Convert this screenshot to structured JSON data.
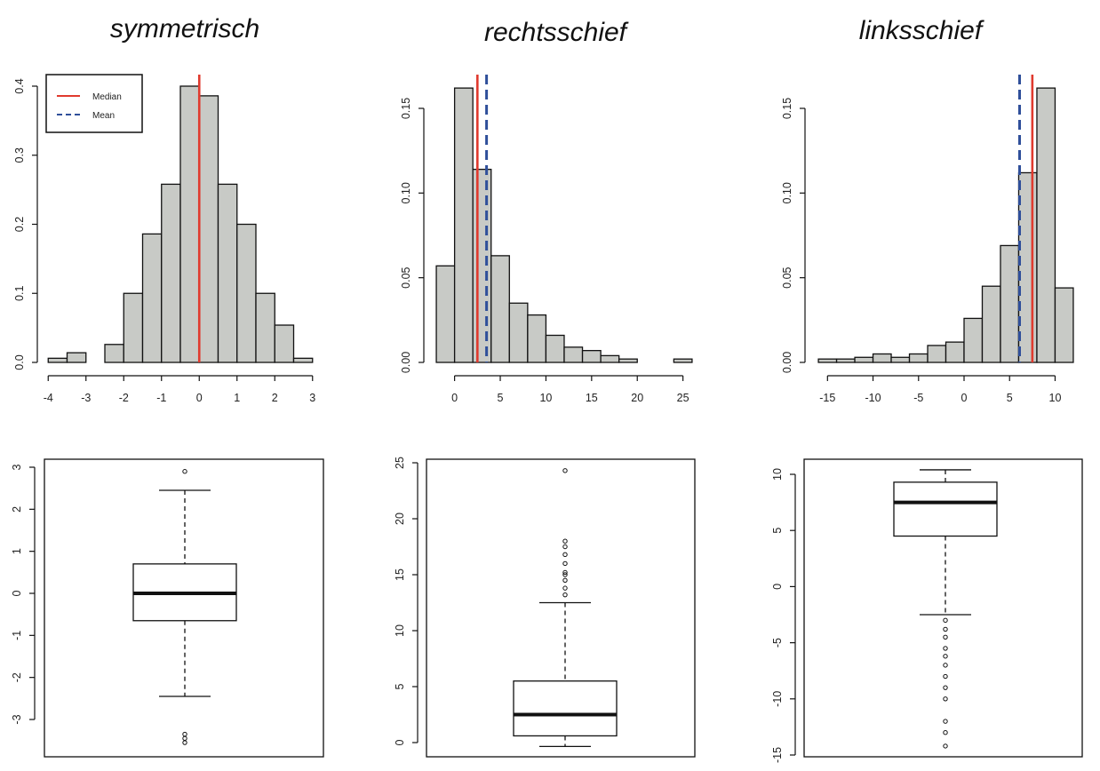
{
  "colors": {
    "bar_fill": "#c8cac6",
    "outline": "#111111",
    "median": "#e03a2e",
    "mean": "#2f4f9a"
  },
  "titles": [
    "symmetrisch",
    "rechtsschief",
    "linksschief"
  ],
  "legend": {
    "median_label": "Median",
    "mean_label": "Mean",
    "placement": "top-left"
  },
  "chart_data": [
    {
      "type": "bar",
      "title": "symmetrisch",
      "xlabel": "",
      "ylabel": "",
      "xlim": [
        -4.1,
        3.1
      ],
      "ylim": [
        0,
        0.4
      ],
      "x_ticks": [
        -4,
        -3,
        -2,
        -1,
        0,
        1,
        2,
        3
      ],
      "y_ticks": [
        0.0,
        0.1,
        0.2,
        0.3,
        0.4
      ],
      "y_tick_labels": [
        "0.0",
        "0.1",
        "0.2",
        "0.3",
        "0.4"
      ],
      "bin_edges": [
        -4,
        -3.5,
        -3,
        -2.5,
        -2,
        -1.5,
        -1,
        -0.5,
        0,
        0.5,
        1,
        1.5,
        2,
        2.5,
        3
      ],
      "density": [
        0.006,
        0.014,
        0.0,
        0.026,
        0.1,
        0.186,
        0.258,
        0.4,
        0.386,
        0.258,
        0.2,
        0.1,
        0.054,
        0.006
      ],
      "median": 0.0,
      "mean": null
    },
    {
      "type": "bar",
      "title": "rechtsschief",
      "xlabel": "",
      "ylabel": "",
      "xlim": [
        -2.2,
        26.3
      ],
      "ylim": [
        0,
        0.15
      ],
      "x_ticks": [
        0,
        5,
        10,
        15,
        20,
        25
      ],
      "y_ticks": [
        0.0,
        0.05,
        0.1,
        0.15
      ],
      "y_tick_labels": [
        "0.00",
        "0.05",
        "0.10",
        "0.15"
      ],
      "bin_edges": [
        -2,
        0,
        2,
        4,
        6,
        8,
        10,
        12,
        14,
        16,
        18,
        20,
        22,
        24,
        26
      ],
      "density": [
        0.057,
        0.162,
        0.114,
        0.063,
        0.035,
        0.028,
        0.016,
        0.009,
        0.007,
        0.004,
        0.002,
        0.0,
        0.0,
        0.002
      ],
      "median": 2.5,
      "mean": 3.5
    },
    {
      "type": "bar",
      "title": "linksschief",
      "xlabel": "",
      "ylabel": "",
      "xlim": [
        -16.3,
        12.2
      ],
      "ylim": [
        0,
        0.15
      ],
      "x_ticks": [
        -15,
        -10,
        -5,
        0,
        5,
        10
      ],
      "y_ticks": [
        0.0,
        0.05,
        0.1,
        0.15
      ],
      "y_tick_labels": [
        "0.00",
        "0.05",
        "0.10",
        "0.15"
      ],
      "bin_edges": [
        -16,
        -14,
        -12,
        -10,
        -8,
        -6,
        -4,
        -2,
        0,
        2,
        4,
        6,
        8,
        10,
        12
      ],
      "density": [
        0.002,
        0.002,
        0.003,
        0.005,
        0.003,
        0.005,
        0.01,
        0.012,
        0.026,
        0.045,
        0.069,
        0.112,
        0.162,
        0.044
      ],
      "median": 7.5,
      "mean": 6.1
    },
    {
      "type": "box",
      "title": "",
      "ylim": [
        -3.65,
        3.12
      ],
      "y_ticks": [
        -3,
        -2,
        -1,
        0,
        1,
        2,
        3
      ],
      "y_tick_labels": [
        "-3",
        "-2",
        "-1",
        "0",
        "1",
        "2",
        "3"
      ],
      "whisker_low": -2.45,
      "q1": -0.65,
      "median": 0.0,
      "q3": 0.7,
      "whisker_high": 2.45,
      "outliers": [
        2.9,
        -3.35,
        -3.45,
        -3.55
      ]
    },
    {
      "type": "box",
      "title": "",
      "ylim": [
        -0.9,
        25.2
      ],
      "y_ticks": [
        0,
        5,
        10,
        15,
        20,
        25
      ],
      "y_tick_labels": [
        "0",
        "5",
        "10",
        "15",
        "20",
        "25"
      ],
      "whisker_low": -0.35,
      "q1": 0.6,
      "median": 2.5,
      "q3": 5.5,
      "whisker_high": 12.5,
      "outliers": [
        13.2,
        13.8,
        14.5,
        15.0,
        15.2,
        16.0,
        16.8,
        17.5,
        18.0,
        24.3
      ]
    },
    {
      "type": "box",
      "title": "",
      "ylim": [
        -15.2,
        11.2
      ],
      "y_ticks": [
        -15,
        -10,
        -5,
        0,
        5,
        10
      ],
      "y_tick_labels": [
        "-15",
        "-10",
        "-5",
        "0",
        "5",
        "10"
      ],
      "whisker_low": -2.5,
      "q1": 4.5,
      "median": 7.5,
      "q3": 9.3,
      "whisker_high": 10.4,
      "outliers": [
        -3.0,
        -3.8,
        -4.5,
        -5.5,
        -6.2,
        -7.0,
        -8.0,
        -9.0,
        -10.0,
        -12.0,
        -13.0,
        -14.2
      ]
    }
  ]
}
